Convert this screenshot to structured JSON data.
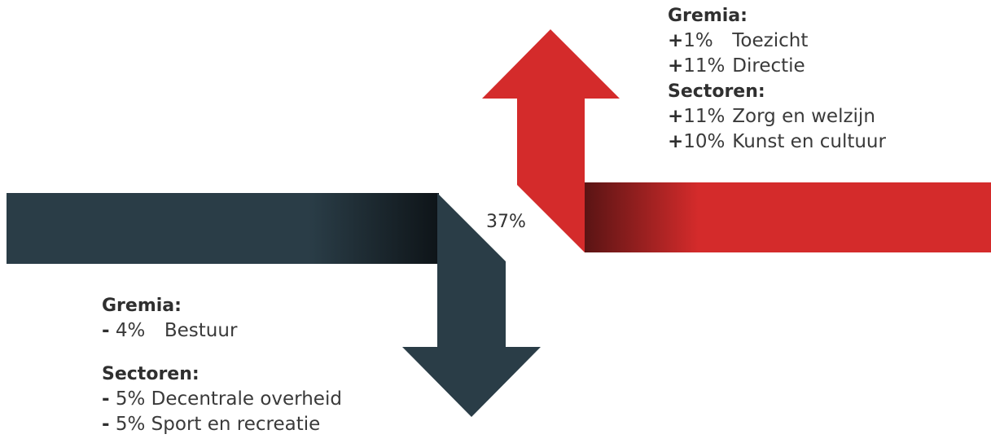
{
  "colors": {
    "up_arrow": "#d42b2b",
    "up_arrow_dark": "#5a1414",
    "down_arrow": "#2a3d47",
    "down_arrow_dark": "#0e1418",
    "text": "#3a3a3a"
  },
  "center_value": "37%",
  "increase": {
    "gremia_heading": "Gremia:",
    "gremia": [
      {
        "sign": "+",
        "pct": "1%",
        "label": "Toezicht"
      },
      {
        "sign": "+",
        "pct": "11%",
        "label": "Directie"
      }
    ],
    "sectoren_heading": "Sectoren:",
    "sectoren": [
      {
        "sign": "+",
        "pct": "11%",
        "label": "Zorg en welzijn"
      },
      {
        "sign": "+",
        "pct": "10%",
        "label": "Kunst en cultuur"
      }
    ]
  },
  "decrease": {
    "gremia_heading": "Gremia:",
    "gremia": [
      {
        "sign": "-",
        "pct": "4%",
        "label": "Bestuur"
      }
    ],
    "sectoren_heading": "Sectoren:",
    "sectoren": [
      {
        "sign": "-",
        "pct": "5%",
        "label": "Decentrale overheid"
      },
      {
        "sign": "-",
        "pct": "5%",
        "label": "Sport en recreatie"
      }
    ]
  }
}
